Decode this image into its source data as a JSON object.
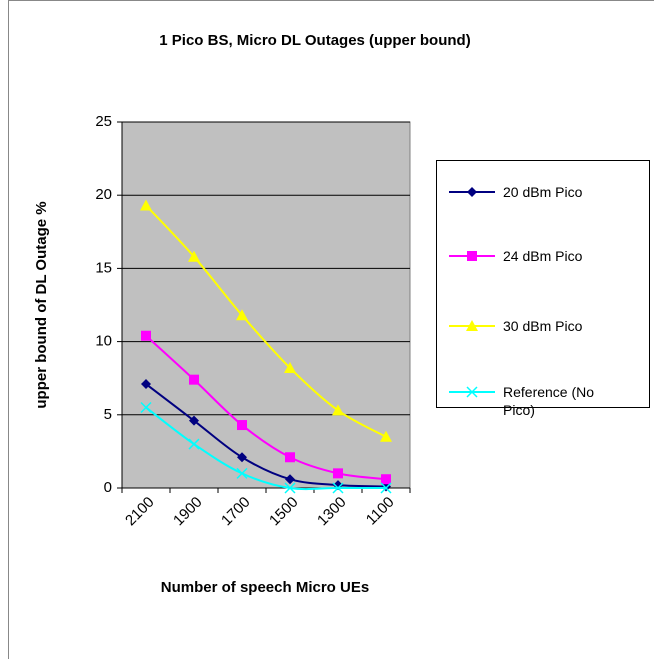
{
  "chart_data": {
    "type": "line",
    "title": "1 Pico BS, Micro DL Outages (upper bound)",
    "x_label": "Number of speech Micro UEs",
    "y_label": "upper bound of DL Outage %",
    "categories": [
      "2100",
      "1900",
      "1700",
      "1500",
      "1300",
      "1100"
    ],
    "series": [
      {
        "name": "20 dBm Pico",
        "color": "#000080",
        "marker": "diamond",
        "values": [
          7.1,
          4.6,
          2.1,
          0.6,
          0.2,
          0.1
        ]
      },
      {
        "name": "24 dBm Pico",
        "color": "#ff00ff",
        "marker": "square",
        "values": [
          10.4,
          7.4,
          4.3,
          2.1,
          1.0,
          0.6
        ]
      },
      {
        "name": "30 dBm Pico",
        "color": "#ffff00",
        "marker": "triangle",
        "values": [
          19.3,
          15.8,
          11.8,
          8.2,
          5.3,
          3.5
        ]
      },
      {
        "name": "Reference (No Pico)",
        "color": "#00ffff",
        "marker": "x",
        "values": [
          5.5,
          3.0,
          1.0,
          0.0,
          0.0,
          0.0
        ]
      }
    ],
    "ylim": [
      0,
      25
    ],
    "yticks": [
      0,
      5,
      10,
      15,
      20,
      25
    ],
    "grid": true,
    "legend": "right"
  }
}
